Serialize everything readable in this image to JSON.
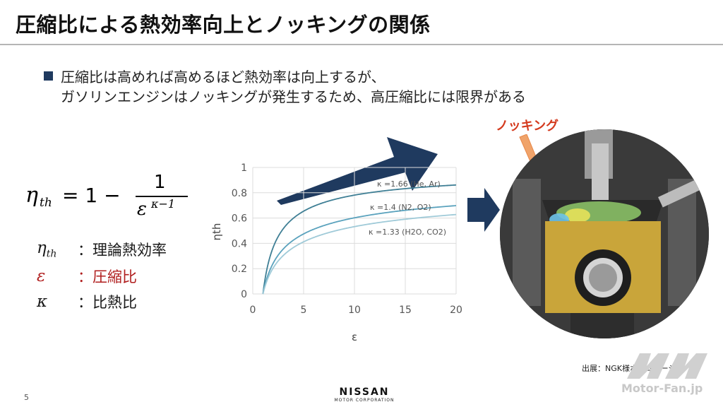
{
  "title": "圧縮比による熱効率向上とノッキングの関係",
  "bullet": {
    "line1": "圧縮比は高めれば高めるほど熱効率は向上するが、",
    "line2": "ガソリンエンジンはノッキングが発生するため、高圧縮比には限界がある"
  },
  "formula": {
    "lhs": "η",
    "lhs_sub": "th",
    "equals_part": "= 1 −",
    "numerator": "1",
    "denominator_base": "ε",
    "denominator_exp": "κ−1"
  },
  "legend": [
    {
      "symbol": "η",
      "symbol_sub": "th",
      "label": "：理論熱効率",
      "color": "#111111"
    },
    {
      "symbol": "ε",
      "symbol_sub": "",
      "label": "：圧縮比",
      "color": "#b01e1e"
    },
    {
      "symbol": "κ",
      "symbol_sub": "",
      "label": "：比熱比",
      "color": "#111111"
    }
  ],
  "arrow_colors": {
    "trend": "#1f3a5f",
    "right": "#1f3a5f"
  },
  "chart_data": {
    "type": "line",
    "xlabel": "ε",
    "ylabel": "ηth",
    "xlim": [
      0,
      20
    ],
    "ylim": [
      0,
      1
    ],
    "xticks": [
      "0",
      "5",
      "10",
      "15",
      "20"
    ],
    "yticks": [
      "0",
      "0.2",
      "0.4",
      "0.6",
      "0.8",
      "1"
    ],
    "grid": true,
    "series": [
      {
        "name": "κ =1.66 (He, Ar)",
        "kappa": 1.66,
        "color": "#3f7f95"
      },
      {
        "name": "κ =1.4 (N2, O2)",
        "kappa": 1.4,
        "color": "#5aa2bd"
      },
      {
        "name": "κ =1.33 (H2O, CO2)",
        "kappa": 1.33,
        "color": "#9fcad8"
      }
    ],
    "x_range": [
      1,
      20
    ]
  },
  "knock_label": "ノッキング",
  "source": "出展：NGK様ホームページ",
  "page_number": "5",
  "brand": {
    "name": "NISSAN",
    "sub": "MOTOR CORPORATION"
  },
  "watermark": "Motor-Fan.jp"
}
